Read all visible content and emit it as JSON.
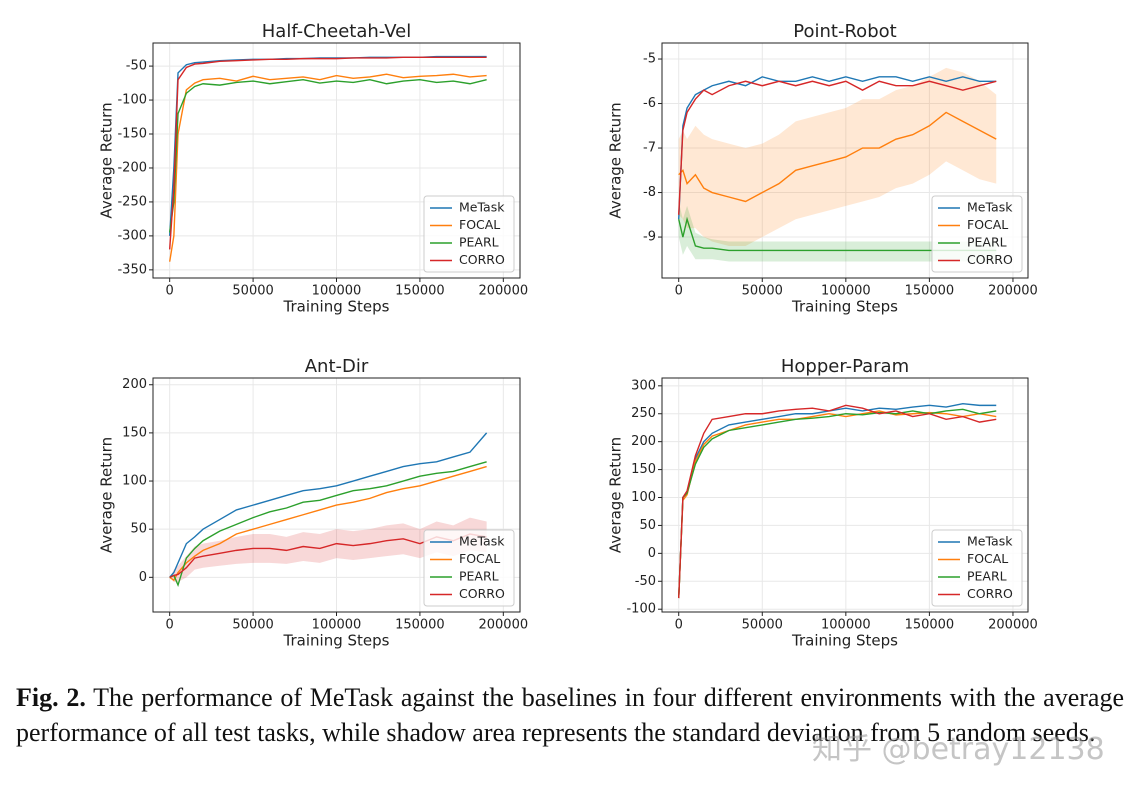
{
  "chart_data": [
    {
      "type": "line",
      "title": "Half-Cheetah-Vel",
      "x_label": "Training Steps",
      "y_label": "Average Return",
      "x": [
        0,
        2500,
        5000,
        10000,
        15000,
        20000,
        30000,
        40000,
        50000,
        60000,
        70000,
        80000,
        90000,
        100000,
        110000,
        120000,
        130000,
        140000,
        150000,
        160000,
        170000,
        180000,
        190000
      ],
      "xlim": [
        -10000,
        210000
      ],
      "xticks": [
        0,
        50000,
        100000,
        150000,
        200000
      ],
      "ylim": [
        -362,
        -16
      ],
      "yticks": [
        -350,
        -300,
        -250,
        -200,
        -150,
        -100,
        -50
      ],
      "grid": true,
      "legend": "lower right",
      "series": [
        {
          "name": "MeTask",
          "color": "#1f77b4",
          "values": [
            -300,
            -200,
            -60,
            -48,
            -45,
            -44,
            -42,
            -41,
            -40,
            -40,
            -39,
            -39,
            -38,
            -38,
            -38,
            -37,
            -37,
            -37,
            -37,
            -36,
            -36,
            -36,
            -36
          ]
        },
        {
          "name": "FOCAL",
          "color": "#ff7f0e",
          "values": [
            -338,
            -300,
            -150,
            -85,
            -75,
            -70,
            -68,
            -72,
            -65,
            -70,
            -68,
            -66,
            -70,
            -64,
            -68,
            -66,
            -62,
            -67,
            -65,
            -64,
            -62,
            -66,
            -64
          ]
        },
        {
          "name": "PEARL",
          "color": "#2ca02c",
          "values": [
            -295,
            -250,
            -120,
            -90,
            -80,
            -76,
            -78,
            -74,
            -72,
            -76,
            -73,
            -70,
            -75,
            -72,
            -74,
            -70,
            -76,
            -72,
            -70,
            -74,
            -72,
            -76,
            -70
          ]
        },
        {
          "name": "CORRO",
          "color": "#d62728",
          "values": [
            -320,
            -230,
            -70,
            -52,
            -47,
            -46,
            -43,
            -42,
            -41,
            -40,
            -40,
            -39,
            -39,
            -39,
            -38,
            -38,
            -38,
            -37,
            -37,
            -37,
            -37,
            -37,
            -37
          ]
        }
      ]
    },
    {
      "type": "line",
      "title": "Point-Robot",
      "x_label": "Training Steps",
      "y_label": "Average Return",
      "x": [
        0,
        2500,
        5000,
        10000,
        15000,
        20000,
        30000,
        40000,
        50000,
        60000,
        70000,
        80000,
        90000,
        100000,
        110000,
        120000,
        130000,
        140000,
        150000,
        160000,
        170000,
        180000,
        190000
      ],
      "xlim": [
        -10000,
        209000
      ],
      "xticks": [
        0,
        50000,
        100000,
        150000,
        200000
      ],
      "ylim": [
        -9.92,
        -4.64
      ],
      "yticks": [
        -9,
        -8,
        -7,
        -6,
        -5
      ],
      "grid": true,
      "legend": "lower right",
      "series": [
        {
          "name": "MeTask",
          "color": "#1f77b4",
          "values": [
            -8.6,
            -6.5,
            -6.1,
            -5.8,
            -5.7,
            -5.6,
            -5.5,
            -5.6,
            -5.4,
            -5.5,
            -5.5,
            -5.4,
            -5.5,
            -5.4,
            -5.5,
            -5.4,
            -5.4,
            -5.5,
            -5.4,
            -5.5,
            -5.4,
            -5.5,
            -5.5
          ]
        },
        {
          "name": "FOCAL",
          "color": "#ff7f0e",
          "values": [
            -7.6,
            -7.5,
            -7.8,
            -7.6,
            -7.9,
            -8.0,
            -8.1,
            -8.2,
            -8.0,
            -7.8,
            -7.5,
            -7.4,
            -7.3,
            -7.2,
            -7.0,
            -7.0,
            -6.8,
            -6.7,
            -6.5,
            -6.2,
            -6.4,
            -6.6,
            -6.8
          ],
          "lower": [
            -8.5,
            -8.6,
            -8.8,
            -8.8,
            -9.0,
            -9.1,
            -9.2,
            -9.2,
            -9.0,
            -8.8,
            -8.6,
            -8.5,
            -8.4,
            -8.3,
            -8.2,
            -8.1,
            -7.9,
            -7.8,
            -7.6,
            -7.3,
            -7.5,
            -7.7,
            -7.8
          ],
          "upper": [
            -6.8,
            -6.6,
            -6.8,
            -6.5,
            -6.7,
            -6.8,
            -6.9,
            -7.0,
            -6.9,
            -6.7,
            -6.4,
            -6.3,
            -6.2,
            -6.1,
            -5.9,
            -5.9,
            -5.7,
            -5.6,
            -5.4,
            -5.2,
            -5.3,
            -5.5,
            -5.8
          ]
        },
        {
          "name": "PEARL",
          "color": "#2ca02c",
          "values": [
            -8.6,
            -9.0,
            -8.6,
            -9.2,
            -9.25,
            -9.25,
            -9.3,
            -9.3,
            -9.3,
            -9.3,
            -9.3,
            -9.3,
            -9.3,
            -9.3,
            -9.3,
            -9.3,
            -9.3,
            -9.3,
            -9.3,
            -9.3,
            -9.3,
            -9.3,
            -9.3
          ],
          "lower": [
            -9.0,
            -9.4,
            -9.2,
            -9.5,
            -9.5,
            -9.5,
            -9.55,
            -9.55,
            -9.55,
            -9.55,
            -9.55,
            -9.55,
            -9.55,
            -9.55,
            -9.55,
            -9.55,
            -9.55,
            -9.55,
            -9.55,
            -9.55,
            -9.55,
            -9.55,
            -9.55
          ],
          "upper": [
            -8.2,
            -8.6,
            -8.3,
            -8.9,
            -9.0,
            -9.05,
            -9.1,
            -9.1,
            -9.1,
            -9.1,
            -9.1,
            -9.1,
            -9.1,
            -9.1,
            -9.1,
            -9.1,
            -9.1,
            -9.1,
            -9.1,
            -9.1,
            -9.1,
            -9.1,
            -9.1
          ]
        },
        {
          "name": "CORRO",
          "color": "#d62728",
          "values": [
            -8.5,
            -6.6,
            -6.2,
            -5.9,
            -5.7,
            -5.8,
            -5.6,
            -5.5,
            -5.6,
            -5.5,
            -5.6,
            -5.5,
            -5.6,
            -5.5,
            -5.7,
            -5.5,
            -5.6,
            -5.6,
            -5.5,
            -5.6,
            -5.7,
            -5.6,
            -5.5
          ]
        }
      ]
    },
    {
      "type": "line",
      "title": "Ant-Dir",
      "x_label": "Training Steps",
      "y_label": "Average Return",
      "x": [
        0,
        2500,
        5000,
        10000,
        15000,
        20000,
        30000,
        40000,
        50000,
        60000,
        70000,
        80000,
        90000,
        100000,
        110000,
        120000,
        130000,
        140000,
        150000,
        160000,
        170000,
        180000,
        190000
      ],
      "xlim": [
        -10000,
        210000
      ],
      "xticks": [
        0,
        50000,
        100000,
        150000,
        200000
      ],
      "ylim": [
        -36,
        207
      ],
      "yticks": [
        0,
        50,
        100,
        150,
        200
      ],
      "grid": true,
      "legend": "lower right",
      "series": [
        {
          "name": "MeTask",
          "color": "#1f77b4",
          "values": [
            0,
            5,
            15,
            35,
            42,
            50,
            60,
            70,
            75,
            80,
            85,
            90,
            92,
            95,
            100,
            105,
            110,
            115,
            118,
            120,
            125,
            130,
            150
          ]
        },
        {
          "name": "FOCAL",
          "color": "#ff7f0e",
          "values": [
            0,
            -3,
            5,
            15,
            22,
            28,
            35,
            45,
            50,
            55,
            60,
            65,
            70,
            75,
            78,
            82,
            88,
            92,
            95,
            100,
            105,
            110,
            115
          ]
        },
        {
          "name": "PEARL",
          "color": "#2ca02c",
          "values": [
            0,
            2,
            -8,
            20,
            30,
            38,
            48,
            55,
            62,
            68,
            72,
            78,
            80,
            85,
            90,
            92,
            95,
            100,
            105,
            108,
            110,
            115,
            120
          ]
        },
        {
          "name": "CORRO",
          "color": "#d62728",
          "values": [
            0,
            2,
            3,
            10,
            20,
            22,
            25,
            28,
            30,
            30,
            28,
            32,
            30,
            35,
            33,
            35,
            38,
            40,
            35,
            42,
            38,
            45,
            42
          ],
          "lower": [
            0,
            -5,
            -5,
            0,
            8,
            10,
            12,
            14,
            15,
            15,
            14,
            17,
            15,
            20,
            18,
            20,
            22,
            24,
            20,
            26,
            22,
            28,
            26
          ],
          "upper": [
            0,
            8,
            12,
            22,
            32,
            35,
            38,
            42,
            45,
            45,
            42,
            47,
            45,
            50,
            48,
            50,
            54,
            56,
            50,
            58,
            54,
            62,
            58
          ]
        }
      ]
    },
    {
      "type": "line",
      "title": "Hopper-Param",
      "x_label": "Training Steps",
      "y_label": "Average Return",
      "x": [
        0,
        2500,
        5000,
        10000,
        15000,
        20000,
        30000,
        40000,
        50000,
        60000,
        70000,
        80000,
        90000,
        100000,
        110000,
        120000,
        130000,
        140000,
        150000,
        160000,
        170000,
        180000,
        190000
      ],
      "xlim": [
        -10000,
        209000
      ],
      "xticks": [
        0,
        50000,
        100000,
        150000,
        200000
      ],
      "ylim": [
        -105,
        314
      ],
      "yticks": [
        -100,
        -50,
        0,
        50,
        100,
        150,
        200,
        250,
        300
      ],
      "grid": true,
      "legend": "lower right",
      "series": [
        {
          "name": "MeTask",
          "color": "#1f77b4",
          "values": [
            -80,
            100,
            110,
            170,
            200,
            215,
            230,
            235,
            240,
            245,
            250,
            250,
            255,
            260,
            255,
            260,
            258,
            262,
            265,
            262,
            268,
            265,
            265
          ]
        },
        {
          "name": "FOCAL",
          "color": "#ff7f0e",
          "values": [
            -80,
            95,
            105,
            165,
            195,
            210,
            220,
            230,
            235,
            240,
            240,
            245,
            250,
            245,
            250,
            255,
            248,
            250,
            252,
            250,
            245,
            250,
            245
          ]
        },
        {
          "name": "PEARL",
          "color": "#2ca02c",
          "values": [
            -80,
            100,
            108,
            160,
            190,
            205,
            220,
            225,
            230,
            235,
            240,
            242,
            245,
            250,
            248,
            252,
            250,
            255,
            250,
            255,
            258,
            250,
            255
          ]
        },
        {
          "name": "CORRO",
          "color": "#d62728",
          "values": [
            -80,
            100,
            112,
            175,
            215,
            240,
            245,
            250,
            250,
            255,
            258,
            260,
            255,
            265,
            260,
            250,
            255,
            245,
            250,
            240,
            245,
            235,
            240
          ]
        }
      ]
    }
  ],
  "caption": {
    "label": "Fig. 2.",
    "text": "The performance of MeTask against the baselines in four different environments with the average performance of all test tasks, while shadow area represents the standard deviation from 5 random seeds."
  },
  "watermark": "知乎 @betray12138"
}
